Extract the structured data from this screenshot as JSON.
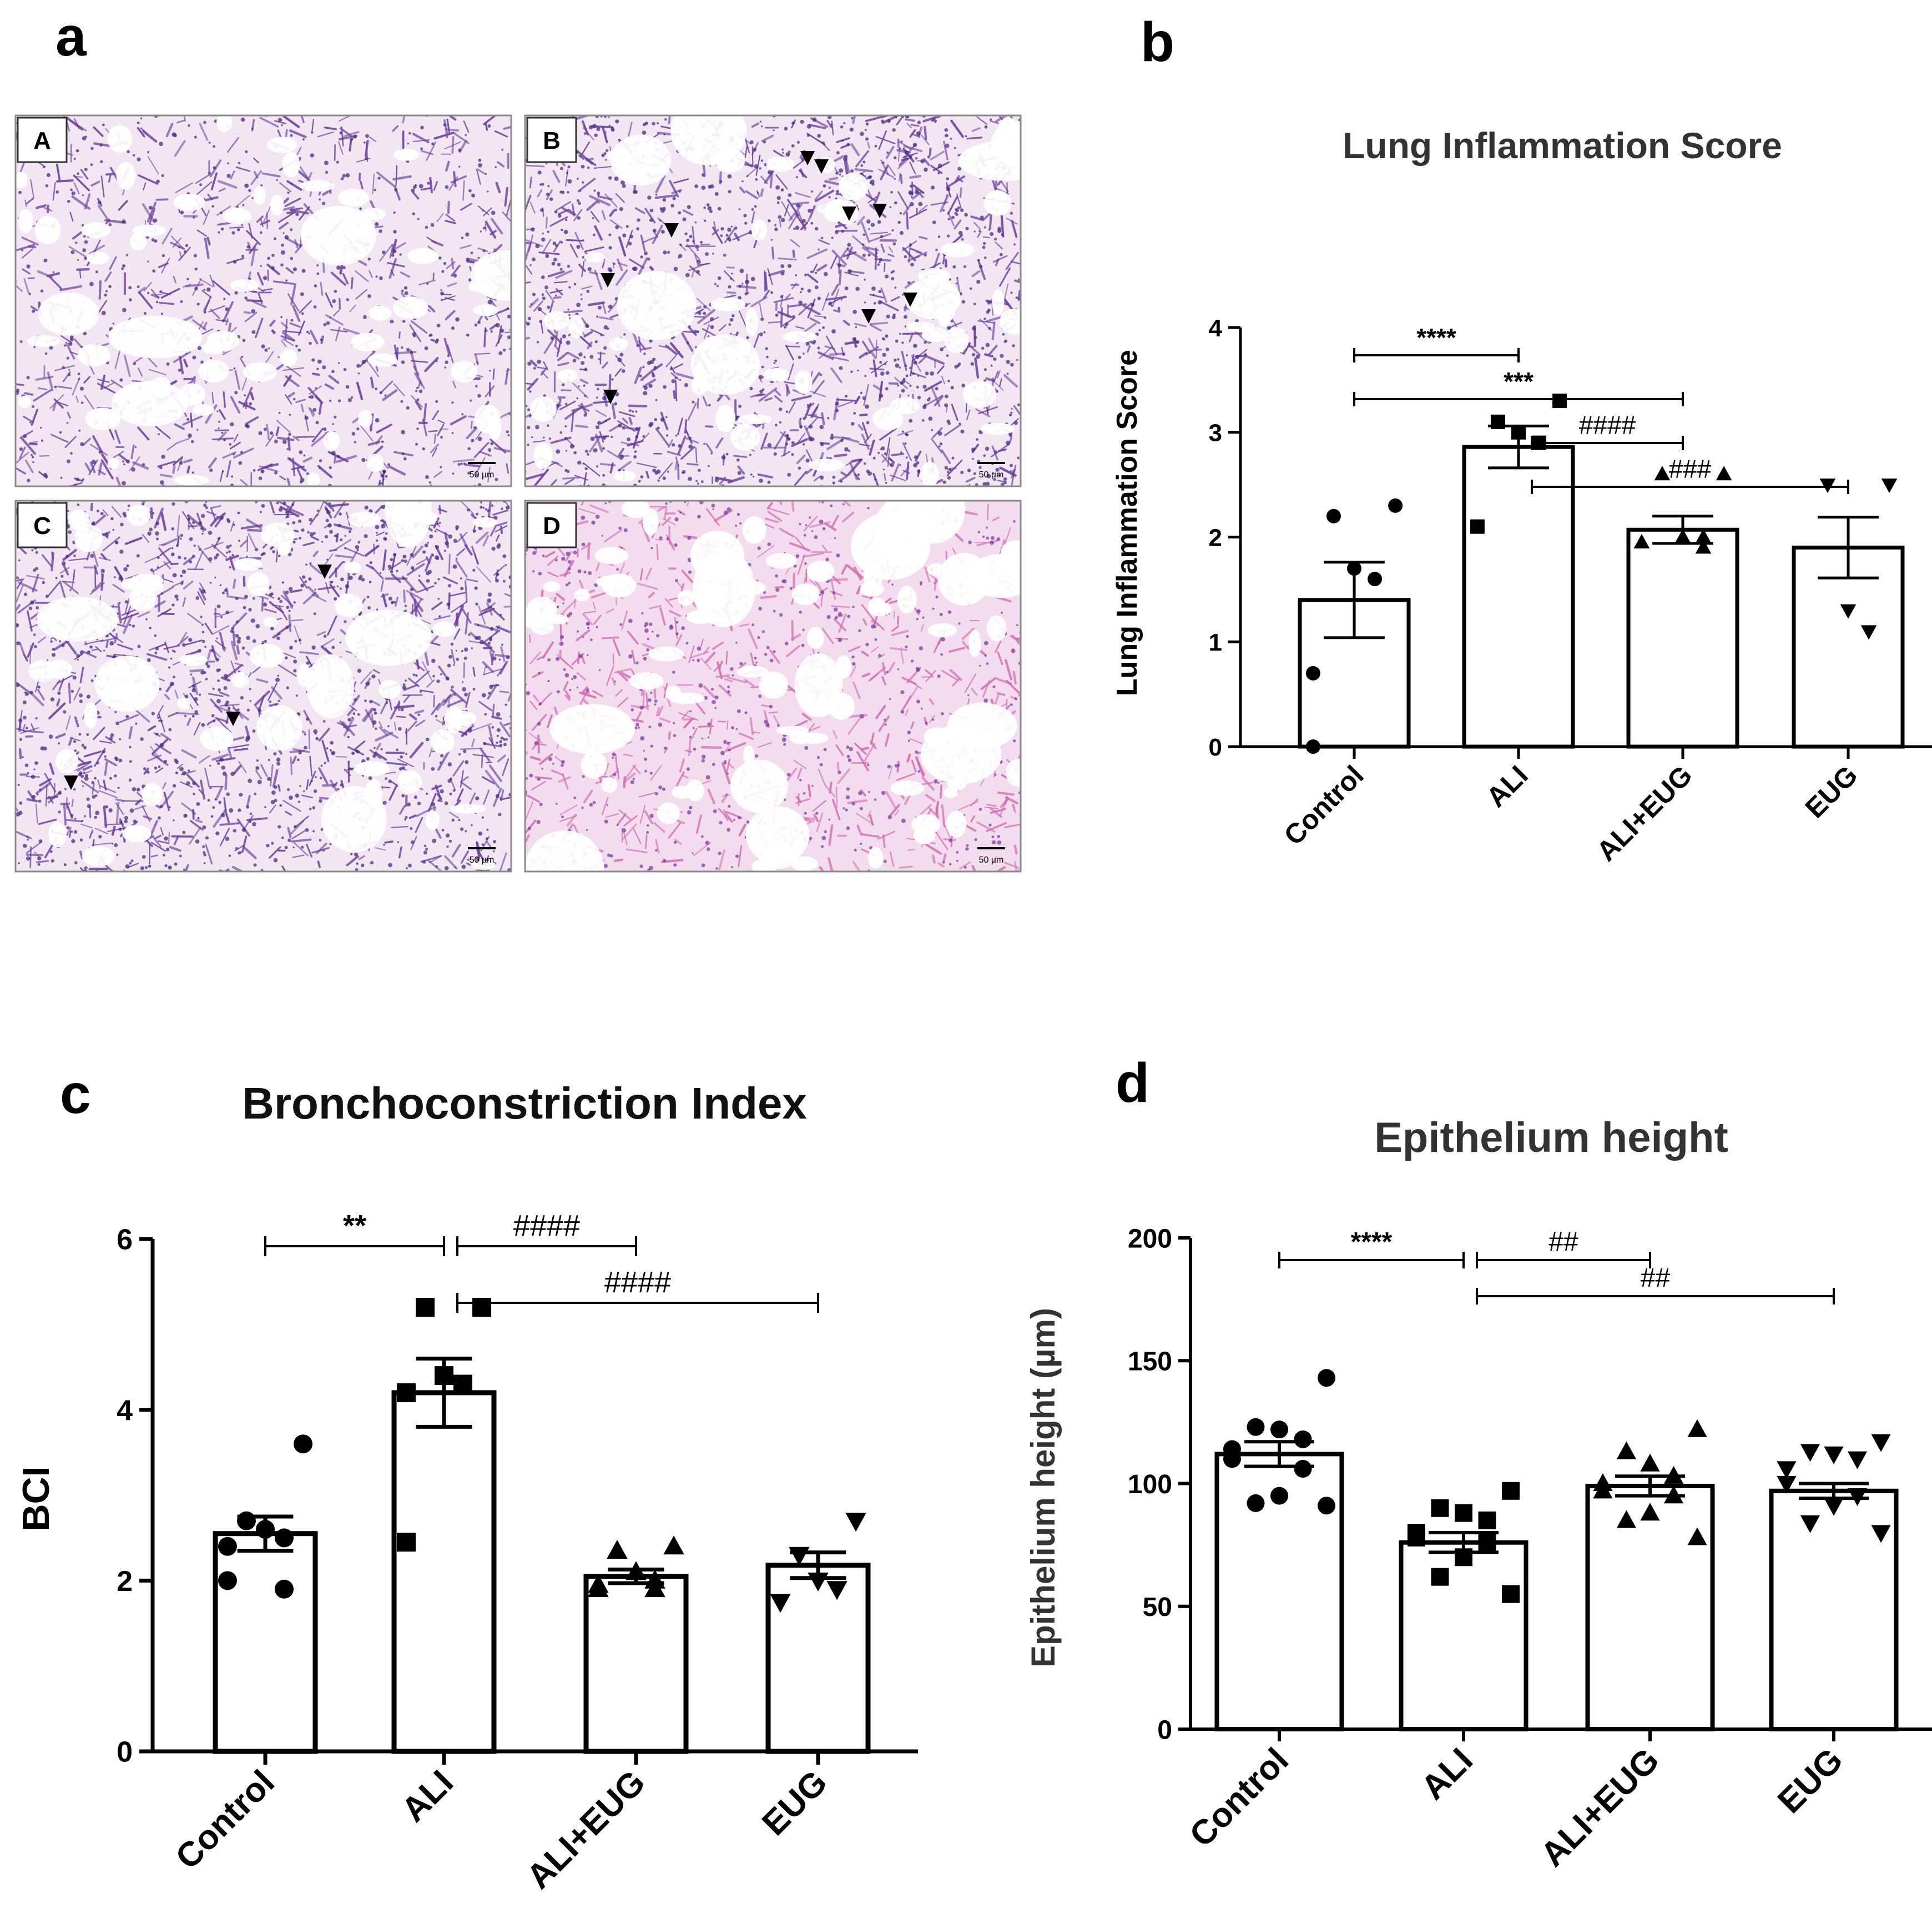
{
  "panel_letters": {
    "a": "a",
    "b": "b",
    "c": "c",
    "d": "d"
  },
  "micrographs": [
    {
      "label": "A",
      "scale_bar": "50 µm",
      "arrowheads": 0,
      "stain": "light"
    },
    {
      "label": "B",
      "scale_bar": "50 µm",
      "arrowheads": 9,
      "stain": "dense"
    },
    {
      "label": "C",
      "scale_bar": "50 µm",
      "arrowheads": 3,
      "stain": "dense"
    },
    {
      "label": "D",
      "scale_bar": "50 µm",
      "arrowheads": 0,
      "stain": "pink"
    }
  ],
  "colors": {
    "ink": "#000000",
    "bar_fill": "#ffffff",
    "tissue_purple": "#6a3f9a",
    "tissue_pink": "#cf6fb0",
    "background": "#ffffff"
  },
  "chart_data": [
    {
      "type": "bar",
      "title": "Lung Inflammation Score",
      "ylabel": "Lung Inflammation Score",
      "xlabel": "",
      "categories": [
        "Control",
        "ALI",
        "ALI+EUG",
        "EUG"
      ],
      "values": [
        1.4,
        2.86,
        2.07,
        1.9
      ],
      "sem": [
        0.36,
        0.2,
        0.13,
        0.29
      ],
      "points": [
        [
          2.3,
          2.2,
          1.7,
          1.6,
          0.7,
          0.0
        ],
        [
          3.3,
          3.1,
          3.0,
          2.9,
          2.1
        ],
        [
          2.6,
          2.6,
          2.0,
          2.0,
          1.95,
          1.95,
          1.9
        ],
        [
          2.5,
          2.5,
          1.3,
          1.1
        ]
      ],
      "markers": [
        "circle",
        "square",
        "triangle-up",
        "triangle-down"
      ],
      "ylim": [
        0,
        4
      ],
      "yticks": [
        0,
        1,
        2,
        3,
        4
      ],
      "significance": [
        {
          "from": 0,
          "to": 1,
          "label": "****",
          "level": 0
        },
        {
          "from": 0,
          "to": 2,
          "label": "***",
          "level": 1
        },
        {
          "from": 1,
          "to": 2,
          "label": "####",
          "level": 2
        },
        {
          "from": 1,
          "to": 3,
          "label": "###",
          "level": 3
        }
      ]
    },
    {
      "type": "bar",
      "title": "Bronchoconstriction Index",
      "ylabel": "BCI",
      "xlabel": "",
      "categories": [
        "Control",
        "ALI",
        "ALI+EUG",
        "EUG"
      ],
      "values": [
        2.55,
        4.2,
        2.05,
        2.18
      ],
      "sem": [
        0.2,
        0.4,
        0.08,
        0.15
      ],
      "points": [
        [
          3.6,
          2.7,
          2.6,
          2.5,
          2.4,
          2.0,
          1.9
        ],
        [
          5.2,
          5.2,
          4.4,
          4.3,
          4.2,
          2.45
        ],
        [
          2.4,
          2.35,
          2.1,
          2.0,
          1.95,
          1.9,
          1.9
        ],
        [
          2.7,
          2.3,
          2.0,
          1.9,
          1.75
        ]
      ],
      "markers": [
        "circle",
        "square",
        "triangle-up",
        "triangle-down"
      ],
      "ylim": [
        0,
        6
      ],
      "yticks": [
        0,
        2,
        4,
        6
      ],
      "significance": [
        {
          "from": 0,
          "to": 1,
          "label": "**",
          "level": 0
        },
        {
          "from": 1,
          "to": 2,
          "label": "####",
          "level": 0
        },
        {
          "from": 1,
          "to": 3,
          "label": "####",
          "level": 1
        }
      ]
    },
    {
      "type": "bar",
      "title": "Epithelium height",
      "ylabel": "Epithelium height (µm)",
      "xlabel": "",
      "categories": [
        "Control",
        "ALI",
        "ALI+EUG",
        "EUG"
      ],
      "values": [
        112,
        76,
        99,
        97
      ],
      "sem": [
        5,
        4,
        4,
        3
      ],
      "points": [
        [
          143,
          123,
          122,
          118,
          114,
          110,
          106,
          95,
          92,
          91
        ],
        [
          97,
          90,
          88,
          85,
          80,
          78,
          76,
          70,
          62,
          55,
          55
        ],
        [
          122,
          113,
          108,
          103,
          100,
          97,
          95,
          88,
          85,
          78
        ],
        [
          117,
          113,
          112,
          110,
          106,
          100,
          95,
          91,
          84,
          80
        ]
      ],
      "markers": [
        "circle",
        "square",
        "triangle-up",
        "triangle-down"
      ],
      "ylim": [
        0,
        200
      ],
      "yticks": [
        0,
        50,
        100,
        150,
        200
      ],
      "significance": [
        {
          "from": 0,
          "to": 1,
          "label": "****",
          "level": 0
        },
        {
          "from": 1,
          "to": 2,
          "label": "##",
          "level": 0
        },
        {
          "from": 1,
          "to": 3,
          "label": "##",
          "level": 1
        }
      ]
    }
  ]
}
